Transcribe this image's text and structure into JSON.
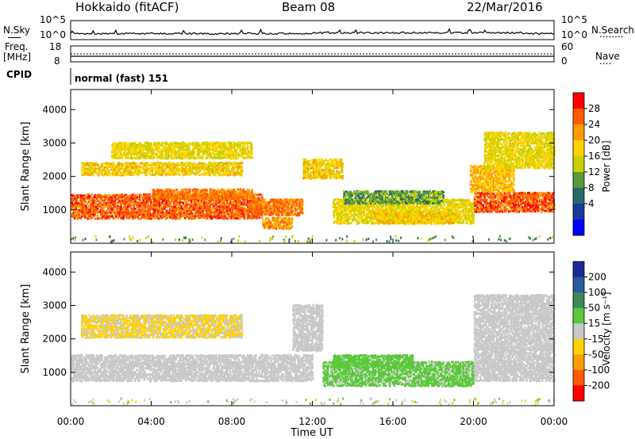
{
  "header": {
    "station": "Hokkaido (fitACF)",
    "beam": "Beam 08",
    "date": "22/Mar/2016"
  },
  "noise_panel": {
    "left_label": "N.Sky",
    "left_ticks": [
      "10^5",
      "10^0"
    ],
    "right_ticks": [
      "10^5",
      "10^0"
    ],
    "right_label": "N.Search",
    "right_dots": "........"
  },
  "freq_panel": {
    "label_top": "Freq.",
    "label_units": "[MHz]",
    "left_ticks": [
      "18",
      "8"
    ],
    "right_ticks": [
      "60",
      "0"
    ],
    "right_label": "Nave",
    "right_dots": "...."
  },
  "cpid_panel": {
    "label": "CPID",
    "mode": "normal (fast) 151"
  },
  "x_axis": {
    "label": "Time UT",
    "ticks": [
      "00:00",
      "04:00",
      "08:00",
      "12:00",
      "16:00",
      "20:00",
      "00:00"
    ]
  },
  "power_colorbar": {
    "title": "Power [dB]",
    "ticks": [
      "28",
      "24",
      "20",
      "16",
      "12",
      "8",
      "4"
    ],
    "colors": [
      "#ff0000",
      "#ff5a00",
      "#ff9a00",
      "#ffd200",
      "#c8d000",
      "#5a9a3a",
      "#2a6a6a",
      "#1a3a9a",
      "#0000ff"
    ]
  },
  "velocity_colorbar": {
    "title": "Velocity [m s⁻¹]",
    "ticks": [
      "200",
      "100",
      "50",
      "15",
      "-15",
      "-50",
      "-100",
      "-200"
    ],
    "colors": [
      "#1a2a9a",
      "#2a5a9a",
      "#3a8a5a",
      "#5ac83a",
      "#c8c8c8",
      "#ffd200",
      "#ff9a00",
      "#ff5a00",
      "#ff0000"
    ]
  },
  "chart_data": [
    {
      "type": "heatmap",
      "title": "Power",
      "xlabel": "",
      "ylabel": "Slant Range [km]",
      "yticks": [
        "1000",
        "2000",
        "3000",
        "4000"
      ],
      "ylim": [
        0,
        4600
      ],
      "xlim_hours": [
        0,
        24
      ],
      "clim": [
        0,
        32
      ],
      "regions": [
        {
          "t0": 0.0,
          "t1": 9.5,
          "r0": 700,
          "r1": 1450,
          "value": 28
        },
        {
          "t0": 4.0,
          "t1": 9.0,
          "r0": 1300,
          "r1": 1600,
          "value": 26
        },
        {
          "t0": 9.0,
          "t1": 11.5,
          "r0": 800,
          "r1": 1300,
          "value": 26
        },
        {
          "t0": 9.5,
          "t1": 11.0,
          "r0": 400,
          "r1": 750,
          "value": 24
        },
        {
          "t0": 0.5,
          "t1": 8.5,
          "r0": 2000,
          "r1": 2400,
          "value": 20
        },
        {
          "t0": 2.0,
          "t1": 9.0,
          "r0": 2500,
          "r1": 3000,
          "value": 18
        },
        {
          "t0": 11.5,
          "t1": 13.5,
          "r0": 1900,
          "r1": 2500,
          "value": 20
        },
        {
          "t0": 13.0,
          "t1": 20.0,
          "r0": 550,
          "r1": 1300,
          "value": 18
        },
        {
          "t0": 15.0,
          "t1": 19.0,
          "r0": 550,
          "r1": 950,
          "value": 20
        },
        {
          "t0": 13.5,
          "t1": 18.5,
          "r0": 1150,
          "r1": 1550,
          "value": 12
        },
        {
          "t0": 20.0,
          "t1": 24.0,
          "r0": 900,
          "r1": 1500,
          "value": 28
        },
        {
          "t0": 19.8,
          "t1": 22.0,
          "r0": 1500,
          "r1": 2300,
          "value": 22
        },
        {
          "t0": 20.5,
          "t1": 24.0,
          "r0": 2200,
          "r1": 3300,
          "value": 18
        }
      ]
    },
    {
      "type": "heatmap",
      "title": "Velocity",
      "xlabel": "Time UT",
      "ylabel": "Slant Range [km]",
      "yticks": [
        "1000",
        "2000",
        "3000",
        "4000"
      ],
      "ylim": [
        0,
        4600
      ],
      "xlim_hours": [
        0,
        24
      ],
      "clim": [
        -250,
        250
      ],
      "regions": [
        {
          "t0": 0.0,
          "t1": 12.0,
          "r0": 700,
          "r1": 1500,
          "value": 0
        },
        {
          "t0": 20.0,
          "t1": 24.0,
          "r0": 700,
          "r1": 1500,
          "value": 0
        },
        {
          "t0": 12.5,
          "t1": 20.0,
          "r0": 550,
          "r1": 1300,
          "value": 25
        },
        {
          "t0": 13.0,
          "t1": 17.0,
          "r0": 1100,
          "r1": 1500,
          "value": 30
        },
        {
          "t0": 0.5,
          "t1": 8.5,
          "r0": 2000,
          "r1": 2700,
          "value": -20
        },
        {
          "t0": 11.0,
          "t1": 12.5,
          "r0": 1600,
          "r1": 3000,
          "value": 0
        },
        {
          "t0": 20.0,
          "t1": 24.0,
          "r0": 1500,
          "r1": 3300,
          "value": 0
        }
      ]
    }
  ]
}
